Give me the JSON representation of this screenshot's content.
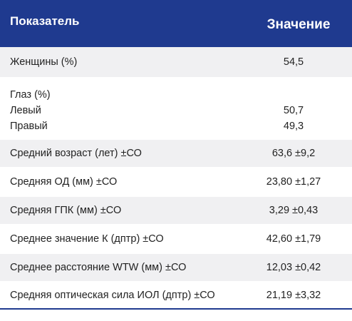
{
  "header": {
    "indicator": "Показатель",
    "value": "Значение"
  },
  "rows": [
    {
      "label": "Женщины (%)",
      "value": "54,5"
    },
    {
      "label_lines": [
        "Глаз (%)",
        "Левый",
        "Правый"
      ],
      "values": [
        "50,7",
        "49,3"
      ]
    },
    {
      "label": "Средний возраст (лет) ±СО",
      "value": "63,6 ±9,2"
    },
    {
      "label": "Средняя ОД (мм) ±СО",
      "value": "23,80 ±1,27"
    },
    {
      "label": "Средняя ГПК (мм) ±СО",
      "value": "3,29 ±0,43"
    },
    {
      "label": "Среднее значение К (дптр) ±СО",
      "value": "42,60 ±1,79"
    },
    {
      "label": "Среднее расстояние WTW (мм) ±СО",
      "value": "12,03 ±0,42"
    },
    {
      "label": "Средняя оптическая сила ИОЛ (дптр) ±СО",
      "value": "21,19 ±3,32"
    }
  ],
  "colors": {
    "header_bg": "#1f3a8f",
    "header_text": "#ffffff",
    "row_alt_bg": "#f0f0f2"
  }
}
